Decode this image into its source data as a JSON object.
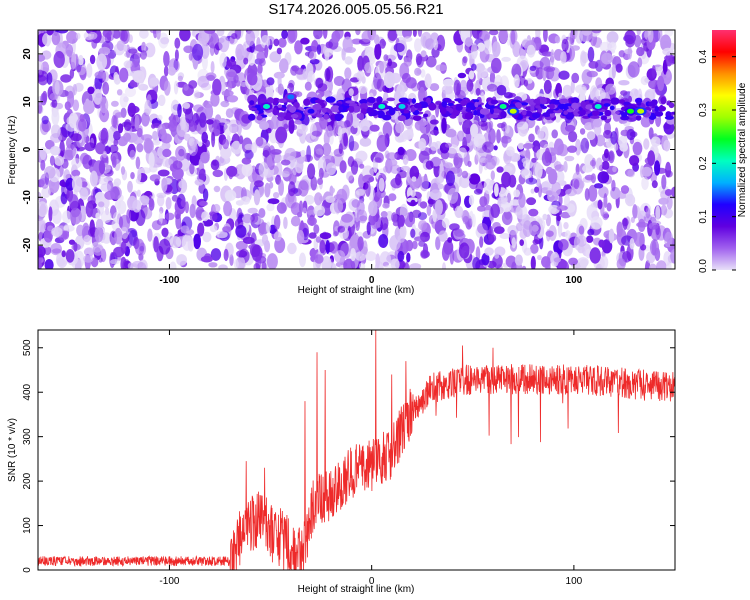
{
  "title": "S174.2026.005.05.56.R21",
  "colors": {
    "snr_line": "#ee2a2a",
    "spectro_background": "#ffffff",
    "spectro_low": "#7a00e6",
    "spectro_mid": "#1f00ff",
    "spectro_high": "#00ff66",
    "colorbar_stops": [
      "#e8e0f8",
      "#a060ee",
      "#6000e0",
      "#2000ff",
      "#00b0ff",
      "#00ffc0",
      "#00ff20",
      "#a0ff00",
      "#ffff00",
      "#ff9000",
      "#ff0000",
      "#ff3070"
    ]
  },
  "chart_data": [
    {
      "type": "heatmap",
      "title": "S174.2026.005.05.56.R21",
      "xlabel": "Height of straight line (km)",
      "ylabel": "Frequency (Hz)",
      "xlim": [
        -165,
        150
      ],
      "ylim": [
        -25,
        25
      ],
      "x_ticks": [
        -100,
        0,
        100
      ],
      "x_tick_labels": [
        "-100",
        "0",
        "100"
      ],
      "y_ticks": [
        -20,
        -10,
        0,
        10,
        20
      ],
      "y_tick_labels": [
        "-20",
        "-10",
        "0",
        "10",
        "20"
      ],
      "grid": false,
      "colorbar": {
        "label": "Normalized spectral amplitude",
        "range": [
          0.0,
          0.45
        ],
        "ticks": [
          0.0,
          0.1,
          0.2,
          0.3,
          0.4
        ],
        "tick_labels": [
          "0.0",
          "0.1",
          "0.2",
          "0.3",
          "0.4"
        ]
      },
      "features": {
        "background_amplitude_range": [
          0.0,
          0.08
        ],
        "band": {
          "frequency_hz": 8.5,
          "x_range": [
            -60,
            150
          ],
          "peaks": [
            {
              "x": -52,
              "f": 9,
              "amplitude": 0.2
            },
            {
              "x": -40,
              "f": 11,
              "amplitude": 0.15
            },
            {
              "x": -30,
              "f": 8,
              "amplitude": 0.12
            },
            {
              "x": 5,
              "f": 9,
              "amplitude": 0.2
            },
            {
              "x": 15,
              "f": 9,
              "amplitude": 0.18
            },
            {
              "x": 65,
              "f": 9,
              "amplitude": 0.22
            },
            {
              "x": 70,
              "f": 8,
              "amplitude": 0.3
            },
            {
              "x": 112,
              "f": 9,
              "amplitude": 0.2
            },
            {
              "x": 128,
              "f": 8,
              "amplitude": 0.25
            },
            {
              "x": 133,
              "f": 8,
              "amplitude": 0.3
            }
          ]
        }
      }
    },
    {
      "type": "line",
      "xlabel": "Height of straight line (km)",
      "ylabel": "SNR (10 * v/v)",
      "xlim": [
        -165,
        150
      ],
      "ylim": [
        0,
        540
      ],
      "x_ticks": [
        -100,
        0,
        100
      ],
      "x_tick_labels": [
        "-100",
        "0",
        "100"
      ],
      "y_ticks": [
        0,
        100,
        200,
        300,
        400,
        500
      ],
      "y_tick_labels": [
        "0",
        "100",
        "200",
        "300",
        "400",
        "500"
      ],
      "grid": false,
      "trend": [
        {
          "x": -165,
          "y": 20
        },
        {
          "x": -70,
          "y": 20
        },
        {
          "x": -65,
          "y": 80
        },
        {
          "x": -55,
          "y": 110
        },
        {
          "x": -45,
          "y": 70
        },
        {
          "x": -35,
          "y": 25
        },
        {
          "x": -28,
          "y": 160
        },
        {
          "x": -20,
          "y": 170
        },
        {
          "x": -10,
          "y": 220
        },
        {
          "x": 0,
          "y": 235
        },
        {
          "x": 10,
          "y": 265
        },
        {
          "x": 20,
          "y": 360
        },
        {
          "x": 30,
          "y": 410
        },
        {
          "x": 50,
          "y": 430
        },
        {
          "x": 100,
          "y": 430
        },
        {
          "x": 150,
          "y": 410
        }
      ],
      "spikes": [
        {
          "x": -62,
          "y": 245
        },
        {
          "x": -53,
          "y": 230
        },
        {
          "x": -33,
          "y": 380
        },
        {
          "x": -27,
          "y": 490
        },
        {
          "x": -23,
          "y": 450
        },
        {
          "x": 2,
          "y": 540
        },
        {
          "x": 10,
          "y": 440
        },
        {
          "x": 17,
          "y": 470
        },
        {
          "x": 45,
          "y": 505
        },
        {
          "x": 60,
          "y": 500
        }
      ]
    }
  ]
}
